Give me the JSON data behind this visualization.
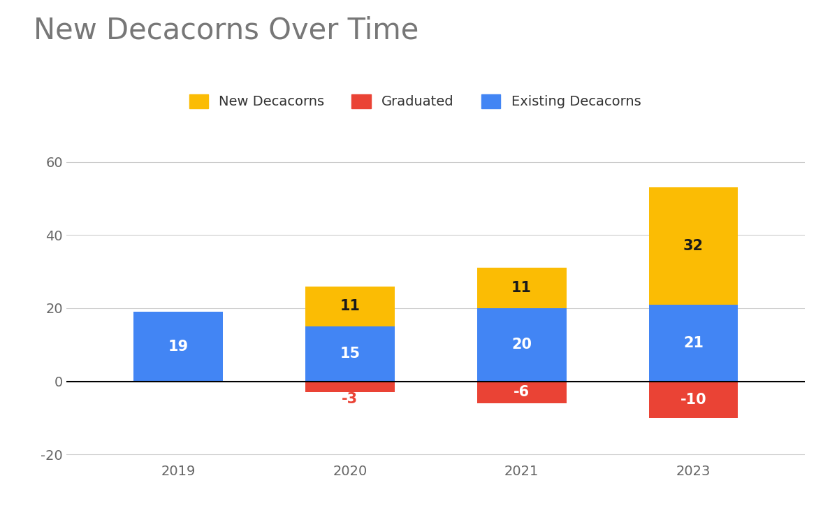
{
  "title": "New Decacorns Over Time",
  "categories": [
    "2019",
    "2020",
    "2021",
    "2023"
  ],
  "new_decacorns": [
    0,
    11,
    11,
    32
  ],
  "graduated": [
    0,
    -3,
    -6,
    -10
  ],
  "existing_decacorns": [
    19,
    15,
    20,
    21
  ],
  "colors": {
    "new_decacorns": "#FBBC04",
    "graduated": "#EA4335",
    "existing_decacorns": "#4285F4"
  },
  "ylim": [
    -22,
    65
  ],
  "yticks": [
    -20,
    0,
    20,
    40,
    60
  ],
  "background_color": "#FFFFFF",
  "title_fontsize": 30,
  "label_fontsize": 15,
  "tick_fontsize": 14,
  "legend_fontsize": 14,
  "bar_width": 0.52
}
